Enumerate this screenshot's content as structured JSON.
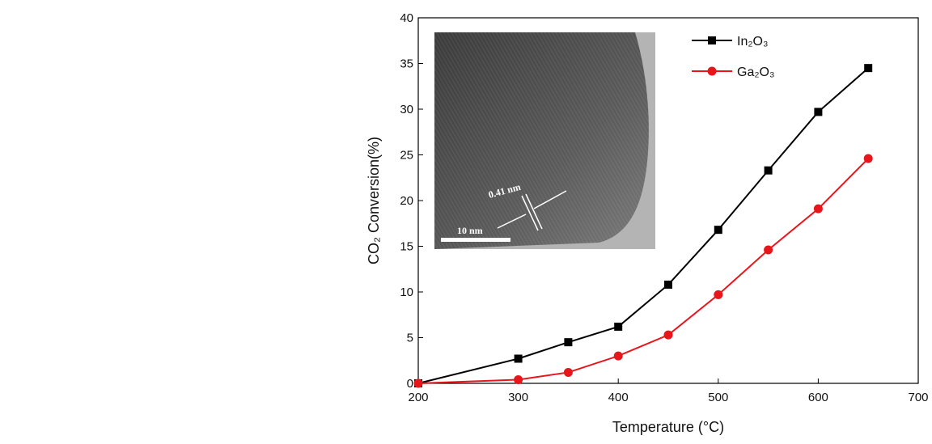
{
  "chart_data": {
    "type": "line",
    "x_label": "Temperature (°C)",
    "y_label": "CO₂ Conversion(%)",
    "x": [
      200,
      300,
      350,
      400,
      450,
      500,
      550,
      600,
      650
    ],
    "series": [
      {
        "name": "In₂O₃",
        "color": "#000000",
        "marker": "square",
        "values": [
          0,
          2.7,
          4.5,
          6.2,
          10.8,
          16.8,
          23.3,
          29.7,
          34.5
        ]
      },
      {
        "name": "Ga₂O₃",
        "color": "#e8151b",
        "marker": "circle",
        "values": [
          0,
          0.4,
          1.2,
          3.0,
          5.3,
          9.7,
          14.6,
          19.1,
          24.6
        ]
      }
    ],
    "xlim": [
      200,
      700
    ],
    "xticks": [
      200,
      300,
      400,
      500,
      600,
      700
    ],
    "ylim": [
      0,
      40
    ],
    "yticks": [
      0,
      5,
      10,
      15,
      20,
      25,
      30,
      35,
      40
    ],
    "legend": "upper right",
    "annotations": [
      "0.41 nm",
      "10 nm"
    ]
  }
}
